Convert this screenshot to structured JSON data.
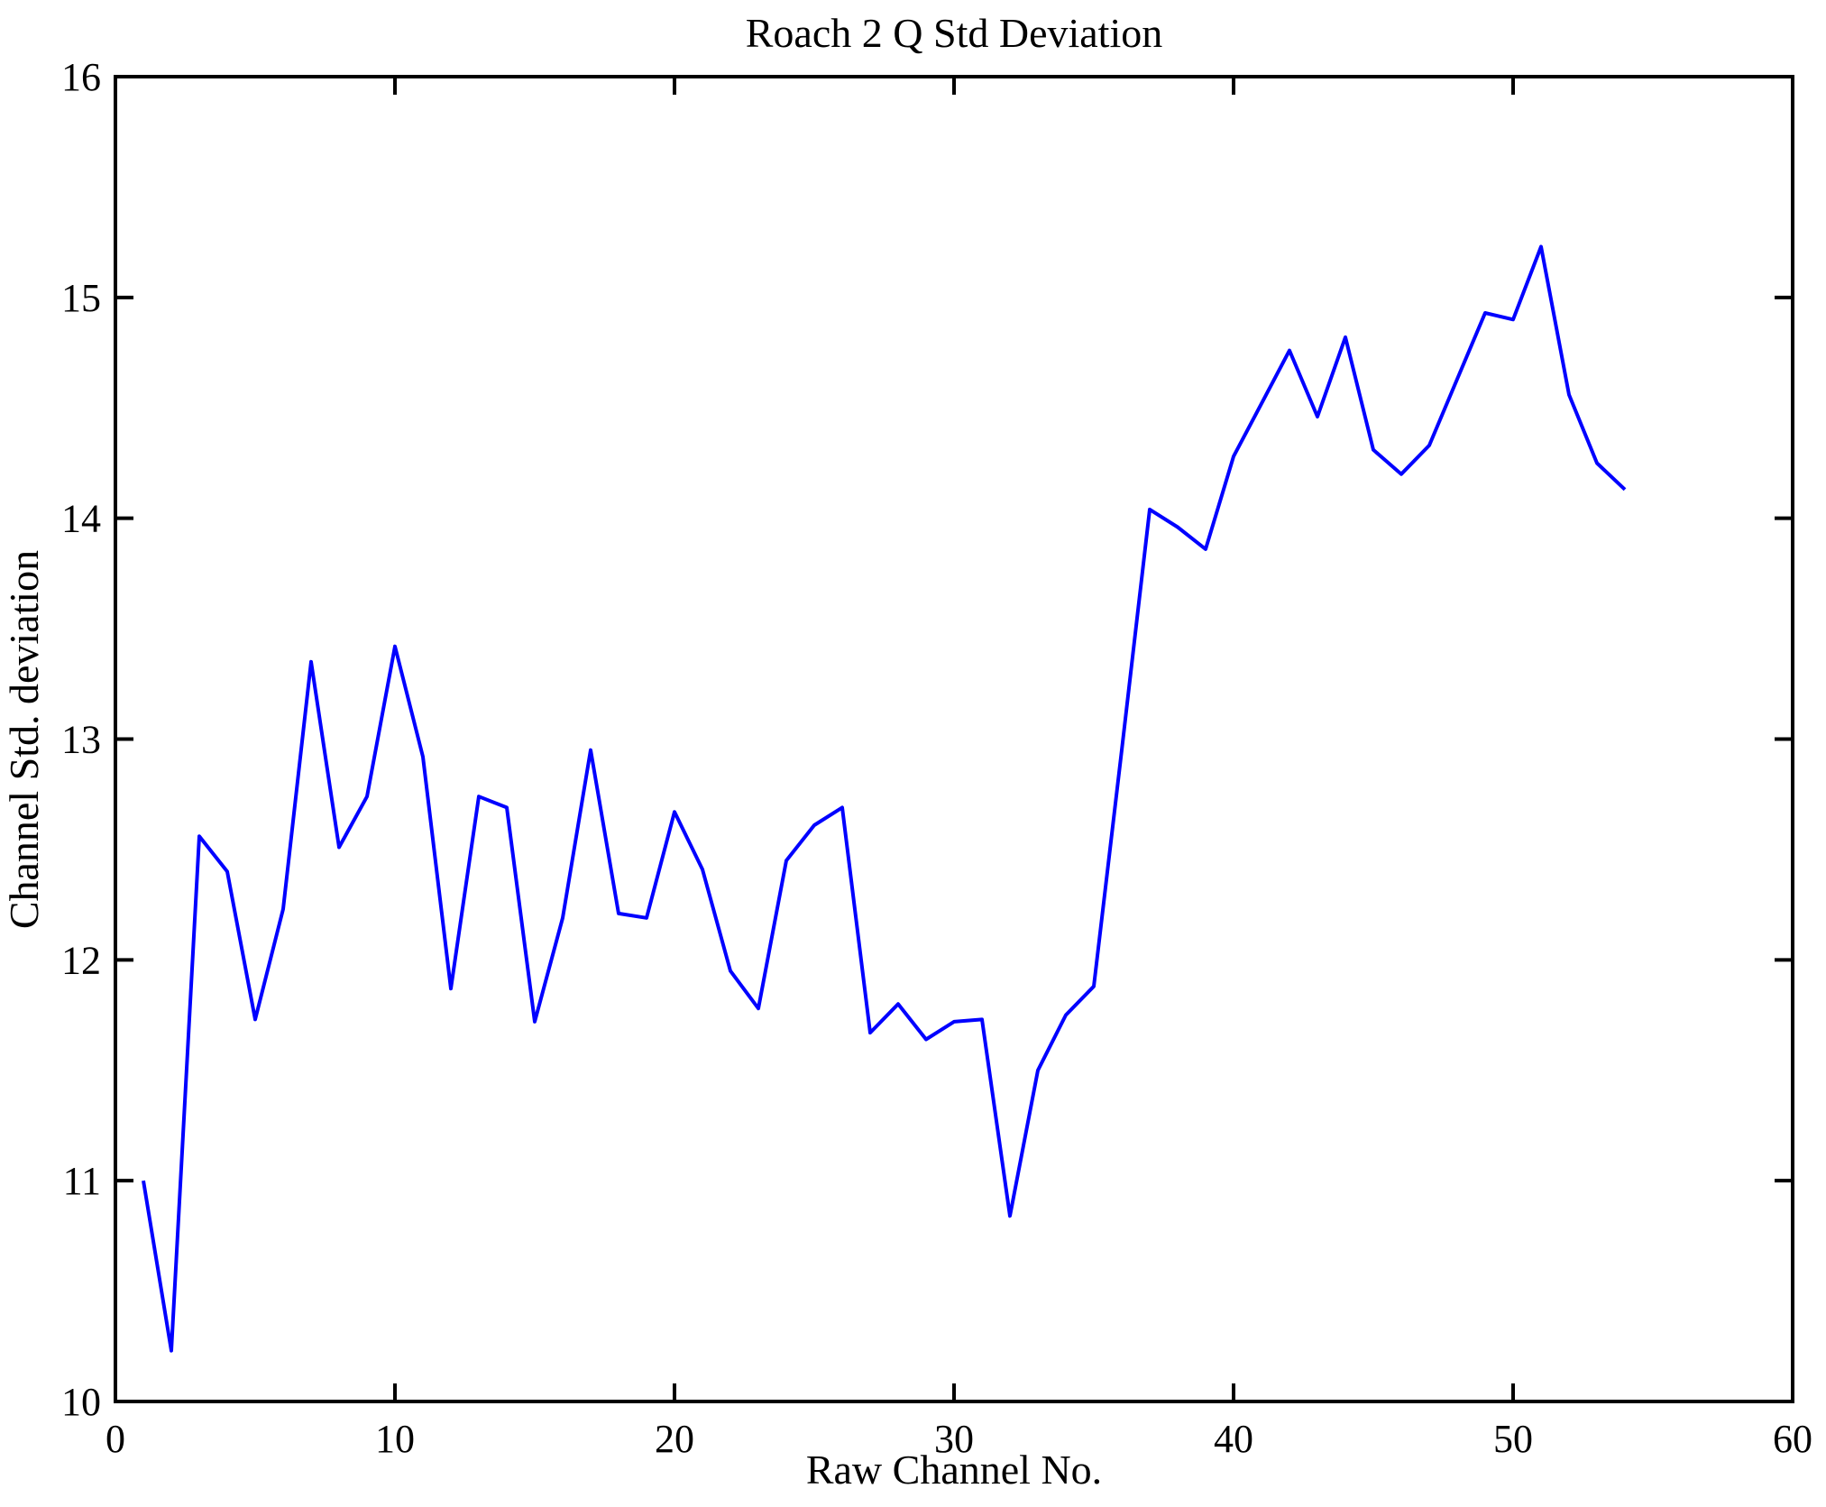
{
  "figure": {
    "title": "Roach 2 Q Std Deviation",
    "xlabel": "Raw Channel No.",
    "ylabel": "Channel Std. deviation",
    "background_color": "#ffffff",
    "axis_color": "#000000",
    "line_color": "#0000ff"
  },
  "chart_data": {
    "type": "line",
    "title": "Roach 2 Q Std Deviation",
    "xlabel": "Raw Channel No.",
    "ylabel": "Channel Std. deviation",
    "xlim": [
      0,
      60
    ],
    "ylim": [
      10,
      16
    ],
    "xticks": [
      0,
      10,
      20,
      30,
      40,
      50,
      60
    ],
    "yticks": [
      10,
      11,
      12,
      13,
      14,
      15,
      16
    ],
    "grid": false,
    "legend": "none",
    "x": [
      1,
      2,
      3,
      4,
      5,
      6,
      7,
      8,
      9,
      10,
      11,
      12,
      13,
      14,
      15,
      16,
      17,
      18,
      19,
      20,
      21,
      22,
      23,
      24,
      25,
      26,
      27,
      28,
      29,
      30,
      31,
      32,
      33,
      34,
      35,
      36,
      37,
      38,
      39,
      40,
      41,
      42,
      43,
      44,
      45,
      46,
      47,
      48,
      49,
      50,
      51,
      52,
      53,
      54
    ],
    "series": [
      {
        "name": "Channel Std. deviation",
        "values": [
          11.0,
          10.23,
          12.56,
          12.4,
          11.73,
          12.23,
          13.35,
          12.51,
          12.74,
          13.42,
          12.92,
          11.87,
          12.74,
          12.69,
          11.72,
          12.19,
          12.95,
          12.21,
          12.19,
          12.67,
          12.41,
          11.95,
          11.78,
          12.45,
          12.61,
          12.69,
          11.67,
          11.8,
          11.64,
          11.72,
          11.73,
          10.84,
          11.5,
          11.75,
          11.88,
          12.95,
          14.04,
          13.96,
          13.86,
          14.28,
          14.52,
          14.76,
          14.46,
          14.82,
          14.31,
          14.2,
          14.33,
          14.63,
          14.93,
          14.9,
          15.23,
          14.56,
          14.25,
          14.13
        ]
      }
    ]
  }
}
